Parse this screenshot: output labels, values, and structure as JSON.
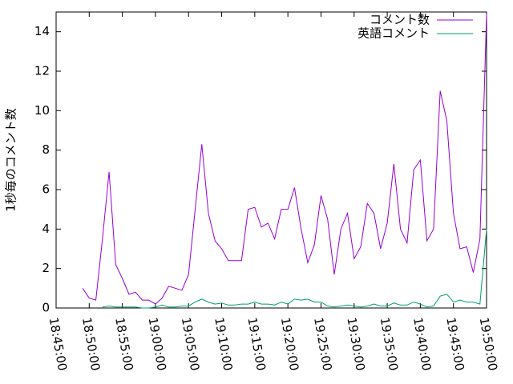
{
  "chart_data": {
    "type": "line",
    "ylabel": "1秒毎のコメント数",
    "x": [
      "18:49:00",
      "18:50:00",
      "18:51:00",
      "18:52:00",
      "18:53:00",
      "18:54:00",
      "18:55:00",
      "18:56:00",
      "18:57:00",
      "18:58:00",
      "18:59:00",
      "19:00:00",
      "19:01:00",
      "19:02:00",
      "19:03:00",
      "19:04:00",
      "19:05:00",
      "19:06:00",
      "19:07:00",
      "19:08:00",
      "19:09:00",
      "19:10:00",
      "19:11:00",
      "19:12:00",
      "19:13:00",
      "19:14:00",
      "19:15:00",
      "19:16:00",
      "19:17:00",
      "19:18:00",
      "19:19:00",
      "19:20:00",
      "19:21:00",
      "19:22:00",
      "19:23:00",
      "19:24:00",
      "19:25:00",
      "19:26:00",
      "19:27:00",
      "19:28:00",
      "19:29:00",
      "19:30:00",
      "19:31:00",
      "19:32:00",
      "19:33:00",
      "19:34:00",
      "19:35:00",
      "19:36:00",
      "19:37:00",
      "19:38:00",
      "19:39:00",
      "19:40:00",
      "19:41:00",
      "19:42:00",
      "19:43:00",
      "19:44:00",
      "19:45:00",
      "19:46:00",
      "19:47:00",
      "19:48:00",
      "19:49:00",
      "19:50:00"
    ],
    "series": [
      {
        "name": "コメント数",
        "color": "#9400d3",
        "values": [
          1.0,
          0.5,
          0.4,
          3.5,
          6.9,
          2.2,
          1.5,
          0.7,
          0.8,
          0.4,
          0.4,
          0.2,
          0.5,
          1.1,
          1.0,
          0.9,
          1.7,
          5.0,
          8.3,
          4.8,
          3.4,
          3.0,
          2.4,
          2.4,
          2.4,
          5.0,
          5.1,
          4.1,
          4.3,
          3.5,
          5.0,
          5.0,
          6.1,
          4.0,
          2.3,
          3.2,
          5.7,
          4.5,
          1.7,
          4.0,
          4.8,
          2.5,
          3.1,
          5.3,
          4.8,
          3.0,
          4.3,
          7.3,
          4.0,
          3.3,
          7.0,
          7.5,
          3.4,
          4.0,
          11.0,
          9.5,
          4.8,
          3.0,
          3.1,
          1.8,
          3.5,
          14.9
        ]
      },
      {
        "name": "英語コメント",
        "color": "#009e73",
        "values": [
          null,
          null,
          null,
          0.05,
          0.1,
          0.05,
          0.05,
          0.05,
          0.05,
          0,
          0,
          0.05,
          0.15,
          0.05,
          0.05,
          0.1,
          0.1,
          0.3,
          0.45,
          0.3,
          0.2,
          0.25,
          0.15,
          0.15,
          0.2,
          0.2,
          0.3,
          0.2,
          0.2,
          0.15,
          0.3,
          0.2,
          0.45,
          0.4,
          0.45,
          0.3,
          0.3,
          0.1,
          0.05,
          0.1,
          0.15,
          0.1,
          0.05,
          0.1,
          0.2,
          0.1,
          0.1,
          0.25,
          0.15,
          0.15,
          0.3,
          0.2,
          0.05,
          0.1,
          0.6,
          0.7,
          0.3,
          0.4,
          0.3,
          0.3,
          0.2,
          4.0
        ]
      }
    ],
    "xlim": [
      "18:45:00",
      "19:50:00"
    ],
    "xticks": [
      "18:45:00",
      "18:50:00",
      "18:55:00",
      "19:00:00",
      "19:05:00",
      "19:10:00",
      "19:15:00",
      "19:20:00",
      "19:25:00",
      "19:30:00",
      "19:35:00",
      "19:40:00",
      "19:45:00",
      "19:50:00"
    ],
    "ylim": [
      0,
      15
    ],
    "yticks": [
      0,
      2,
      4,
      6,
      8,
      10,
      12,
      14
    ],
    "legend": "top-right"
  }
}
